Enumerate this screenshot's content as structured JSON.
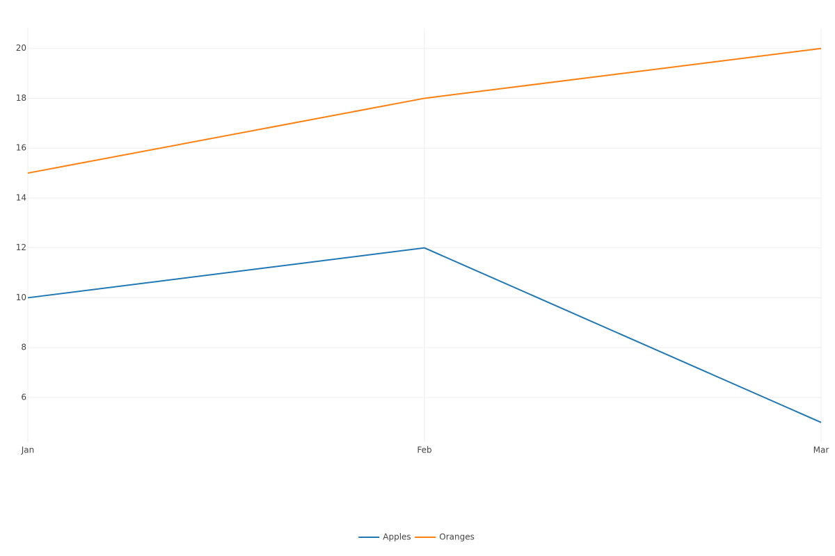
{
  "chart_data": {
    "type": "line",
    "categories": [
      "Jan",
      "Feb",
      "Mar"
    ],
    "series": [
      {
        "name": "Apples",
        "color": "#1f77b4",
        "values": [
          10,
          12,
          5
        ]
      },
      {
        "name": "Oranges",
        "color": "#ff7f0e",
        "values": [
          15,
          18,
          20
        ]
      }
    ],
    "ylim": [
      4.2,
      20.8
    ],
    "yticks": [
      6,
      8,
      10,
      12,
      14,
      16,
      18,
      20
    ],
    "grid": true,
    "legend": "bottom"
  }
}
